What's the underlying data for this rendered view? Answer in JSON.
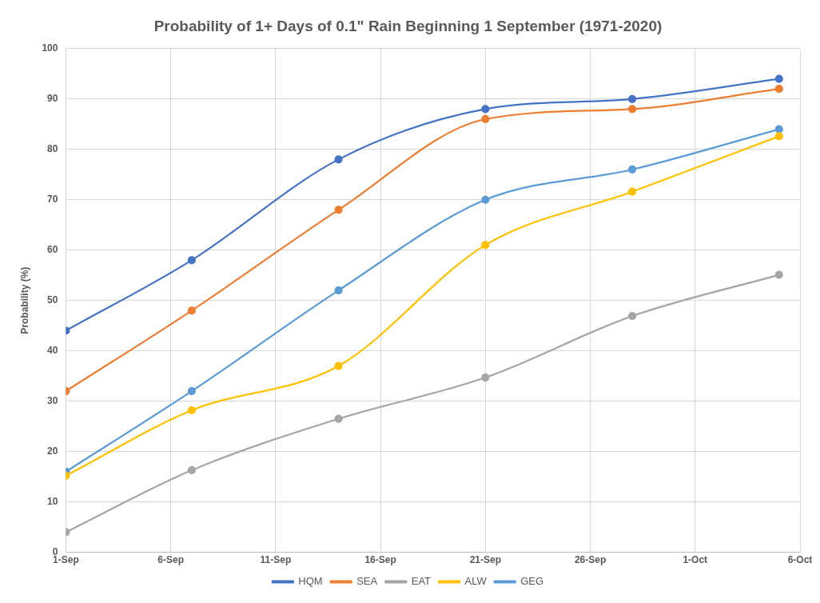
{
  "chart_data": {
    "type": "line",
    "title": "Probability of 1+ Days of 0.1\" Rain Beginning 1 September (1971-2020)",
    "ylabel": "Probability (%)",
    "x": [
      "--09-01",
      "--09-07",
      "--09-14",
      "--09-21",
      "--09-28",
      "--10-05"
    ],
    "series": [
      {
        "name": "HQM",
        "color": "#4472c4",
        "values": [
          44,
          58,
          78,
          88,
          90,
          94
        ]
      },
      {
        "name": "SEA",
        "color": "#ed7d31",
        "values": [
          32,
          48,
          68,
          86,
          88,
          92
        ]
      },
      {
        "name": "EAT",
        "color": "#a5a5a5",
        "values": [
          4,
          16.3,
          26.5,
          34.7,
          46.9,
          55.1
        ]
      },
      {
        "name": "ALW",
        "color": "#ffc000",
        "values": [
          15.2,
          28.2,
          37,
          61,
          71.6,
          82.6
        ]
      },
      {
        "name": "GEG",
        "color": "#5b9bd5",
        "values": [
          16,
          32,
          52,
          70,
          76,
          84
        ]
      }
    ],
    "xlim": [
      "--09-01",
      "--10-06"
    ],
    "xticks": [
      {
        "value": "--09-01",
        "label": "1-Sep"
      },
      {
        "value": "--09-06",
        "label": "6-Sep"
      },
      {
        "value": "--09-11",
        "label": "11-Sep"
      },
      {
        "value": "--09-16",
        "label": "16-Sep"
      },
      {
        "value": "--09-21",
        "label": "21-Sep"
      },
      {
        "value": "--09-26",
        "label": "26-Sep"
      },
      {
        "value": "--10-01",
        "label": "1-Oct"
      },
      {
        "value": "--10-06",
        "label": "6-Oct"
      }
    ],
    "ylim": [
      0,
      100
    ],
    "yticks": [
      0,
      10,
      20,
      30,
      40,
      50,
      60,
      70,
      80,
      90,
      100
    ],
    "grid": true,
    "legend": "bottom",
    "marker": "circle",
    "line_style": "solid"
  }
}
